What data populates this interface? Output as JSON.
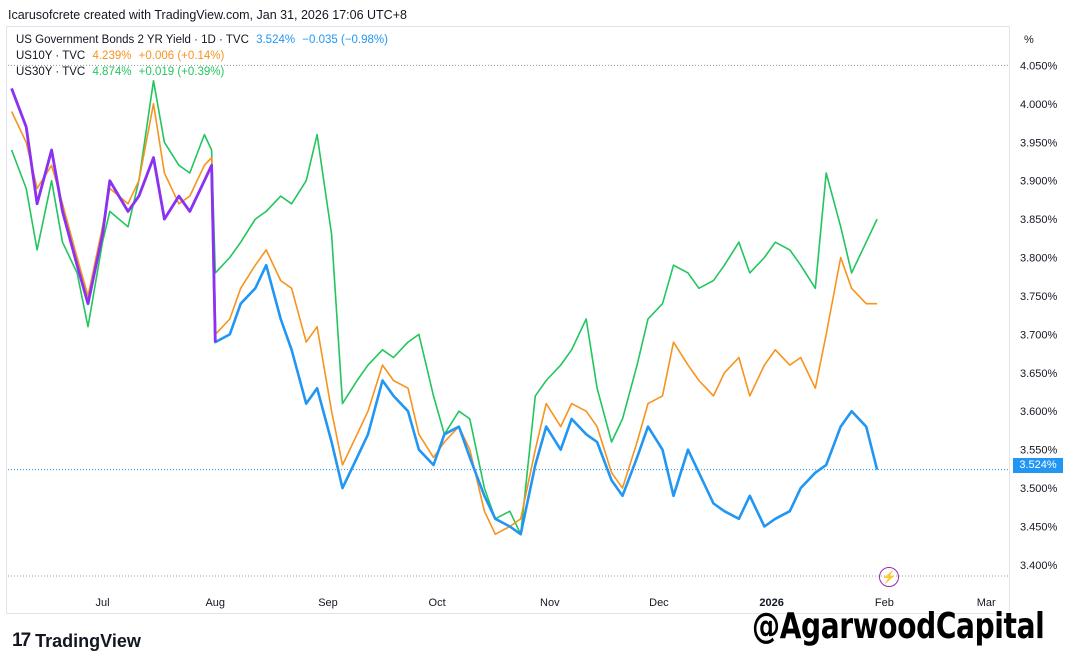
{
  "header": {
    "text": "Icarusofcrete created with TradingView.com, Jan 31, 2026 17:06 UTC+8"
  },
  "legend": [
    {
      "name": "US Government Bonds 2 YR Yield · 1D · TVC",
      "value": "3.524%",
      "change": "−0.035 (−0.98%)",
      "color": "#2196f3"
    },
    {
      "name": "US10Y · TVC",
      "value": "4.239%",
      "change": "+0.006 (+0.14%)",
      "color": "#f7931e"
    },
    {
      "name": "US30Y · TVC",
      "value": "4.874%",
      "change": "+0.019 (+0.39%)",
      "color": "#22c55e"
    }
  ],
  "axis": {
    "unit": "%",
    "current_price_label": "3.524%"
  },
  "branding": {
    "logo_text": "TradingView",
    "watermark": "@AgarwoodCapital"
  },
  "icons": {
    "logo": "tradingview-logo-icon",
    "bolt": "lightning-bolt-icon"
  },
  "chart_data": {
    "type": "line",
    "x_tick_labels": [
      "Jul",
      "Aug",
      "Sep",
      "Oct",
      "Nov",
      "Dec",
      "2026",
      "Feb",
      "Mar"
    ],
    "y_tick_labels": [
      "3.400%",
      "3.450%",
      "3.500%",
      "3.550%",
      "3.600%",
      "3.650%",
      "3.700%",
      "3.750%",
      "3.800%",
      "3.850%",
      "3.900%",
      "3.950%",
      "4.000%",
      "4.050%"
    ],
    "ylim": [
      3.37,
      4.1
    ],
    "x_range": [
      "2025-06-05",
      "2026-03-07"
    ],
    "grid": false,
    "scale_note": "All three series drawn on the 2 YR yield percentage scale (overlay)",
    "series": [
      {
        "name": "US Government Bonds 2 YR Yield · 1D · TVC",
        "color": "#2196f3",
        "x": [
          "2025-06-06",
          "2025-06-10",
          "2025-06-13",
          "2025-06-17",
          "2025-06-20",
          "2025-06-24",
          "2025-06-27",
          "2025-07-01",
          "2025-07-03",
          "2025-07-08",
          "2025-07-11",
          "2025-07-15",
          "2025-07-18",
          "2025-07-22",
          "2025-07-25",
          "2025-07-29",
          "2025-07-31",
          "2025-08-01",
          "2025-08-05",
          "2025-08-08",
          "2025-08-12",
          "2025-08-15",
          "2025-08-19",
          "2025-08-22",
          "2025-08-26",
          "2025-08-29",
          "2025-09-02",
          "2025-09-05",
          "2025-09-09",
          "2025-09-12",
          "2025-09-16",
          "2025-09-19",
          "2025-09-23",
          "2025-09-26",
          "2025-09-30",
          "2025-10-03",
          "2025-10-07",
          "2025-10-10",
          "2025-10-14",
          "2025-10-17",
          "2025-10-21",
          "2025-10-24",
          "2025-10-28",
          "2025-10-31",
          "2025-11-04",
          "2025-11-07",
          "2025-11-11",
          "2025-11-14",
          "2025-11-18",
          "2025-11-21",
          "2025-11-25",
          "2025-11-28",
          "2025-12-02",
          "2025-12-05",
          "2025-12-09",
          "2025-12-12",
          "2025-12-16",
          "2025-12-19",
          "2025-12-23",
          "2025-12-26",
          "2025-12-30",
          "2026-01-02",
          "2026-01-06",
          "2026-01-09",
          "2026-01-13",
          "2026-01-16",
          "2026-01-20",
          "2026-01-23",
          "2026-01-27",
          "2026-01-30"
        ],
        "values": [
          4.02,
          3.97,
          3.87,
          3.94,
          3.86,
          3.79,
          3.74,
          3.83,
          3.9,
          3.86,
          3.88,
          3.93,
          3.85,
          3.88,
          3.86,
          3.9,
          3.92,
          3.69,
          3.7,
          3.74,
          3.76,
          3.79,
          3.72,
          3.68,
          3.61,
          3.63,
          3.56,
          3.5,
          3.54,
          3.57,
          3.64,
          3.62,
          3.6,
          3.55,
          3.53,
          3.57,
          3.58,
          3.54,
          3.49,
          3.46,
          3.45,
          3.44,
          3.53,
          3.58,
          3.55,
          3.59,
          3.57,
          3.56,
          3.51,
          3.49,
          3.54,
          3.58,
          3.55,
          3.49,
          3.55,
          3.52,
          3.48,
          3.47,
          3.46,
          3.49,
          3.45,
          3.46,
          3.47,
          3.5,
          3.52,
          3.53,
          3.58,
          3.6,
          3.58,
          3.524
        ]
      },
      {
        "name": "US10Y · TVC",
        "color": "#f7931e",
        "x": [
          "2025-06-06",
          "2025-06-10",
          "2025-06-13",
          "2025-06-17",
          "2025-06-20",
          "2025-06-24",
          "2025-06-27",
          "2025-07-01",
          "2025-07-03",
          "2025-07-08",
          "2025-07-11",
          "2025-07-15",
          "2025-07-18",
          "2025-07-22",
          "2025-07-25",
          "2025-07-29",
          "2025-07-31",
          "2025-08-01",
          "2025-08-05",
          "2025-08-08",
          "2025-08-12",
          "2025-08-15",
          "2025-08-19",
          "2025-08-22",
          "2025-08-26",
          "2025-08-29",
          "2025-09-02",
          "2025-09-05",
          "2025-09-09",
          "2025-09-12",
          "2025-09-16",
          "2025-09-19",
          "2025-09-23",
          "2025-09-26",
          "2025-09-30",
          "2025-10-03",
          "2025-10-07",
          "2025-10-10",
          "2025-10-14",
          "2025-10-17",
          "2025-10-21",
          "2025-10-24",
          "2025-10-28",
          "2025-10-31",
          "2025-11-04",
          "2025-11-07",
          "2025-11-11",
          "2025-11-14",
          "2025-11-18",
          "2025-11-21",
          "2025-11-25",
          "2025-11-28",
          "2025-12-02",
          "2025-12-05",
          "2025-12-09",
          "2025-12-12",
          "2025-12-16",
          "2025-12-19",
          "2025-12-23",
          "2025-12-26",
          "2025-12-30",
          "2026-01-02",
          "2026-01-06",
          "2026-01-09",
          "2026-01-13",
          "2026-01-16",
          "2026-01-20",
          "2026-01-23",
          "2026-01-27",
          "2026-01-30"
        ],
        "values": [
          3.99,
          3.95,
          3.89,
          3.92,
          3.87,
          3.8,
          3.75,
          3.84,
          3.89,
          3.87,
          3.9,
          4.0,
          3.91,
          3.87,
          3.88,
          3.92,
          3.93,
          3.7,
          3.72,
          3.76,
          3.79,
          3.81,
          3.77,
          3.76,
          3.69,
          3.71,
          3.6,
          3.53,
          3.57,
          3.6,
          3.66,
          3.64,
          3.63,
          3.57,
          3.54,
          3.56,
          3.58,
          3.55,
          3.47,
          3.44,
          3.45,
          3.46,
          3.55,
          3.61,
          3.58,
          3.61,
          3.6,
          3.58,
          3.52,
          3.5,
          3.56,
          3.61,
          3.62,
          3.69,
          3.66,
          3.64,
          3.62,
          3.65,
          3.67,
          3.62,
          3.66,
          3.68,
          3.66,
          3.67,
          3.63,
          3.7,
          3.8,
          3.76,
          3.74,
          3.74
        ]
      },
      {
        "name": "US30Y · TVC",
        "color": "#22c55e",
        "x": [
          "2025-06-06",
          "2025-06-10",
          "2025-06-13",
          "2025-06-17",
          "2025-06-20",
          "2025-06-24",
          "2025-06-27",
          "2025-07-01",
          "2025-07-03",
          "2025-07-08",
          "2025-07-11",
          "2025-07-15",
          "2025-07-18",
          "2025-07-22",
          "2025-07-25",
          "2025-07-29",
          "2025-07-31",
          "2025-08-01",
          "2025-08-05",
          "2025-08-08",
          "2025-08-12",
          "2025-08-15",
          "2025-08-19",
          "2025-08-22",
          "2025-08-26",
          "2025-08-29",
          "2025-09-02",
          "2025-09-05",
          "2025-09-09",
          "2025-09-12",
          "2025-09-16",
          "2025-09-19",
          "2025-09-23",
          "2025-09-26",
          "2025-09-30",
          "2025-10-03",
          "2025-10-07",
          "2025-10-10",
          "2025-10-14",
          "2025-10-17",
          "2025-10-21",
          "2025-10-24",
          "2025-10-28",
          "2025-10-31",
          "2025-11-04",
          "2025-11-07",
          "2025-11-11",
          "2025-11-14",
          "2025-11-18",
          "2025-11-21",
          "2025-11-25",
          "2025-11-28",
          "2025-12-02",
          "2025-12-05",
          "2025-12-09",
          "2025-12-12",
          "2025-12-16",
          "2025-12-19",
          "2025-12-23",
          "2025-12-26",
          "2025-12-30",
          "2026-01-02",
          "2026-01-06",
          "2026-01-09",
          "2026-01-13",
          "2026-01-16",
          "2026-01-20",
          "2026-01-23",
          "2026-01-27",
          "2026-01-30"
        ],
        "values": [
          3.94,
          3.89,
          3.81,
          3.9,
          3.82,
          3.78,
          3.71,
          3.82,
          3.86,
          3.84,
          3.9,
          4.03,
          3.95,
          3.92,
          3.91,
          3.96,
          3.94,
          3.78,
          3.8,
          3.82,
          3.85,
          3.86,
          3.88,
          3.87,
          3.9,
          3.96,
          3.83,
          3.61,
          3.64,
          3.66,
          3.68,
          3.67,
          3.69,
          3.7,
          3.62,
          3.57,
          3.6,
          3.59,
          3.5,
          3.46,
          3.47,
          3.44,
          3.62,
          3.64,
          3.66,
          3.68,
          3.72,
          3.63,
          3.56,
          3.59,
          3.66,
          3.72,
          3.74,
          3.79,
          3.78,
          3.76,
          3.77,
          3.79,
          3.82,
          3.78,
          3.8,
          3.82,
          3.81,
          3.79,
          3.76,
          3.91,
          3.84,
          3.78,
          3.82,
          3.85
        ]
      }
    ]
  }
}
